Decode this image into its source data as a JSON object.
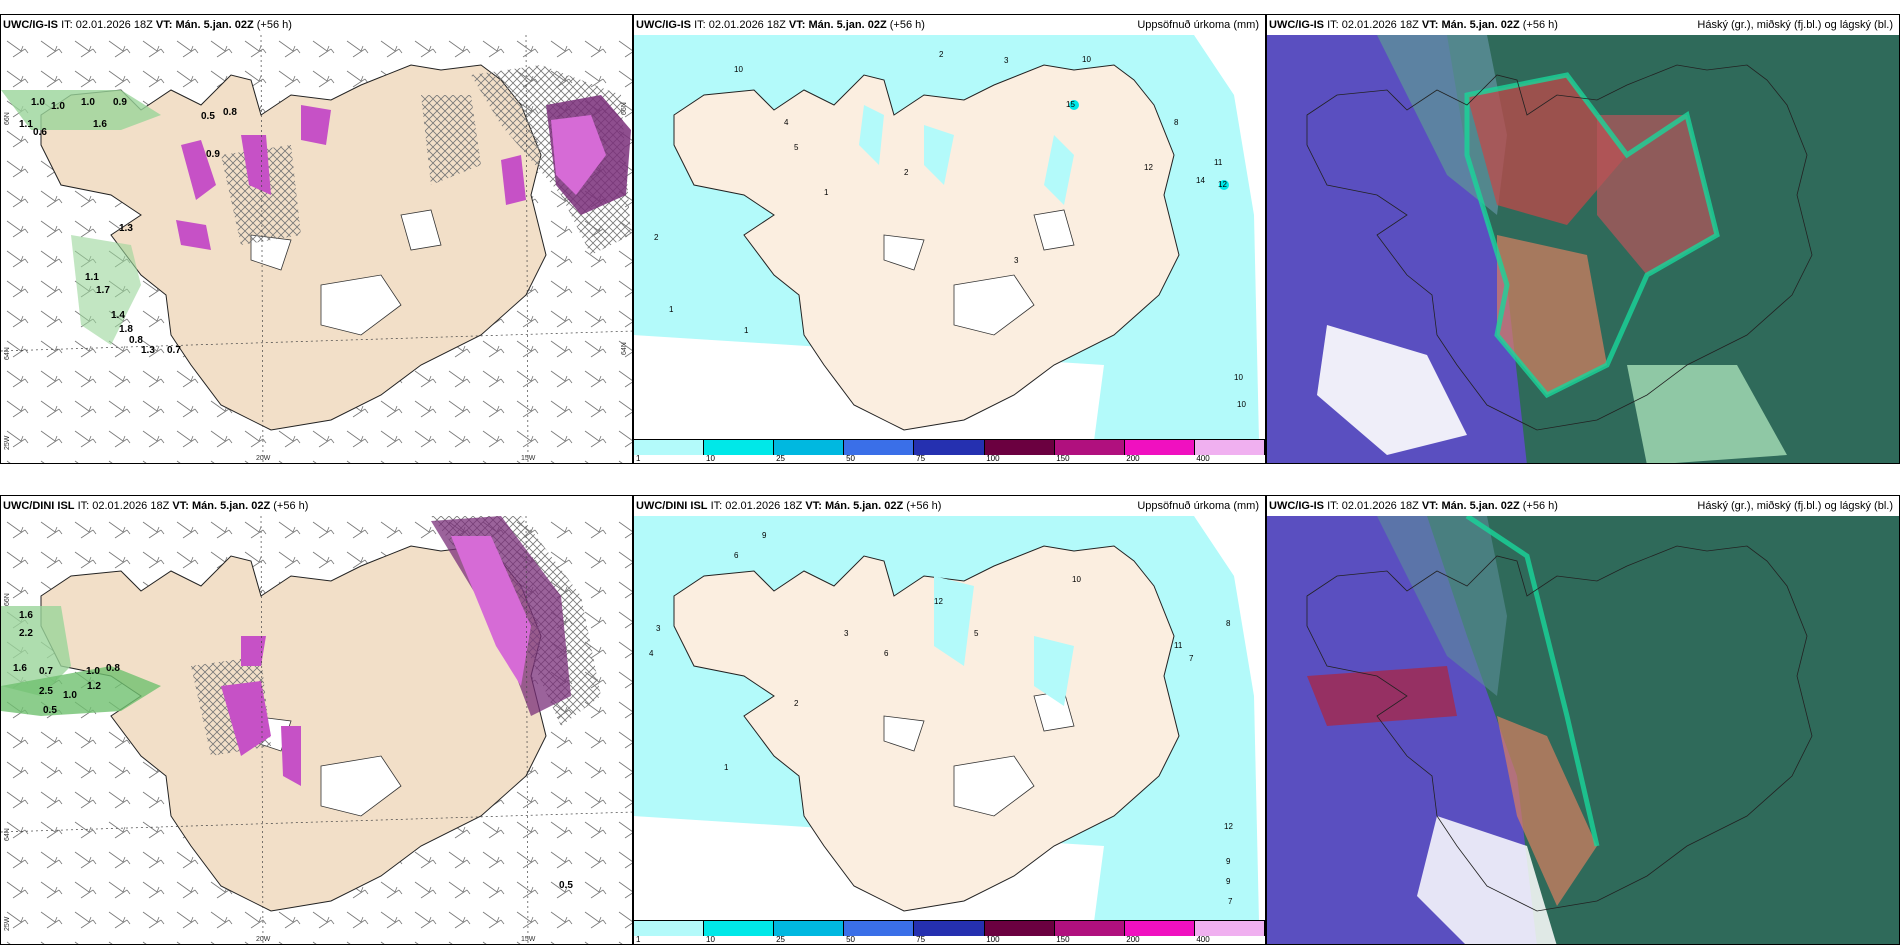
{
  "rows": [
    {
      "model": "UWC/IG-IS",
      "init_label": "IT:",
      "init": "02.01.2026 18Z",
      "valid_label": "VT:",
      "valid": "Mán. 5.jan. 02Z",
      "lead": "(+56 h)",
      "cloud_model": "UWC/IG-IS",
      "wind_values": [
        "1.0",
        "1.0",
        "1.0",
        "0.9",
        "1.1",
        "0.6",
        "1.6",
        "0.5",
        "0.8",
        "0.9",
        "1.3",
        "1.1",
        "1.7",
        "1.4",
        "1.8",
        "0.8",
        "1.3",
        "0.7"
      ],
      "precip_values": [
        "10",
        "2",
        "3",
        "10",
        "15",
        "8",
        "12",
        "11",
        "12",
        "14",
        "4",
        "5",
        "2",
        "1",
        "1",
        "10",
        "10",
        "3",
        "2",
        "1"
      ]
    },
    {
      "model": "UWC/DINI ISL",
      "init_label": "IT:",
      "init": "02.01.2026 18Z",
      "valid_label": "VT:",
      "valid": "Mán. 5.jan. 02Z",
      "lead": "(+56 h)",
      "cloud_model": "UWC/IG-IS",
      "wind_values": [
        "1.6",
        "2.2",
        "1.6",
        "0.7",
        "1.0",
        "0.8",
        "2.5",
        "1.0",
        "0.5",
        "1.2",
        "0.5"
      ],
      "precip_values": [
        "9",
        "6",
        "12",
        "10",
        "11",
        "7",
        "8",
        "12",
        "9",
        "9",
        "7",
        "3",
        "4",
        "5",
        "2",
        "1",
        "6",
        "3"
      ]
    }
  ],
  "precip_title": "Uppsöfnuð úrkoma (mm)",
  "cloud_title": "Háský (gr.), miðský (fj.bl.) og lágský (bl.)",
  "legend": {
    "colors": [
      "#b3fafa",
      "#00e8e8",
      "#00b8e0",
      "#3a6fe8",
      "#2530b0",
      "#6b0040",
      "#b0107e",
      "#f010c0",
      "#f0b0f0"
    ],
    "ticks": [
      "1",
      "10",
      "25",
      "50",
      "75",
      "100",
      "150",
      "200",
      "400"
    ]
  },
  "axis_labels": {
    "lat66": "66N",
    "lat64": "64N",
    "lon20": "20W",
    "lon15": "15W",
    "lon25": "25W"
  }
}
